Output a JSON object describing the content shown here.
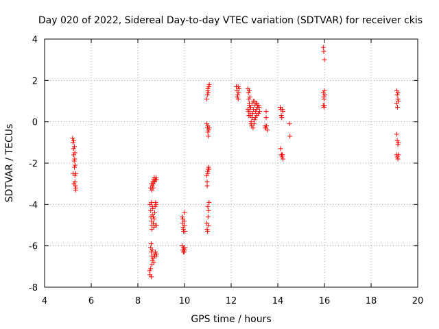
{
  "chart_data": {
    "type": "scatter",
    "title": "Day 020 of 2022, Sidereal Day-to-day VTEC variation (SDTVAR) for receiver ckis",
    "xlabel": "GPS time / hours",
    "ylabel": "SDTVAR / TECUs",
    "xlim": [
      4,
      20
    ],
    "ylim": [
      -8,
      4
    ],
    "xticks": [
      4,
      6,
      8,
      10,
      12,
      14,
      16,
      18,
      20
    ],
    "yticks": [
      -8,
      -6,
      -4,
      -2,
      0,
      2,
      4
    ],
    "xtick_labels": [
      "4",
      "6",
      "8",
      "10",
      "12",
      "14",
      "16",
      "18",
      "20"
    ],
    "ytick_labels": [
      "-8",
      "-6",
      "-4",
      "-2",
      "0",
      "2",
      "4"
    ],
    "grid": true,
    "marker": "+",
    "color": "#ff0000",
    "points": [
      [
        5.2,
        -0.8
      ],
      [
        5.22,
        -1.0
      ],
      [
        5.24,
        -1.3
      ],
      [
        5.25,
        -1.6
      ],
      [
        5.27,
        -1.9
      ],
      [
        5.28,
        -2.2
      ],
      [
        5.3,
        -2.6
      ],
      [
        5.3,
        -2.9
      ],
      [
        5.32,
        -3.1
      ],
      [
        5.33,
        -3.3
      ],
      [
        5.25,
        -0.9
      ],
      [
        5.28,
        -1.2
      ],
      [
        5.3,
        -1.5
      ],
      [
        5.29,
        -1.8
      ],
      [
        5.31,
        -2.1
      ],
      [
        5.34,
        -2.5
      ],
      [
        5.34,
        -3.2
      ],
      [
        5.22,
        -2.5
      ],
      [
        5.26,
        -3.0
      ],
      [
        8.5,
        -7.2
      ],
      [
        8.52,
        -7.4
      ],
      [
        8.55,
        -7.1
      ],
      [
        8.58,
        -7.5
      ],
      [
        8.6,
        -6.9
      ],
      [
        8.62,
        -6.7
      ],
      [
        8.6,
        -6.5
      ],
      [
        8.58,
        -6.3
      ],
      [
        8.55,
        -6.1
      ],
      [
        8.57,
        -5.9
      ],
      [
        8.62,
        -6.2
      ],
      [
        8.65,
        -6.6
      ],
      [
        8.68,
        -6.8
      ],
      [
        8.7,
        -6.4
      ],
      [
        8.72,
        -6.5
      ],
      [
        8.75,
        -6.3
      ],
      [
        8.78,
        -6.5
      ],
      [
        8.8,
        -6.4
      ],
      [
        8.52,
        -4.0
      ],
      [
        8.55,
        -4.3
      ],
      [
        8.56,
        -4.6
      ],
      [
        8.58,
        -4.8
      ],
      [
        8.6,
        -5.0
      ],
      [
        8.62,
        -4.5
      ],
      [
        8.64,
        -4.2
      ],
      [
        8.66,
        -4.9
      ],
      [
        8.68,
        -5.1
      ],
      [
        8.7,
        -4.7
      ],
      [
        8.72,
        -4.4
      ],
      [
        8.74,
        -4.1
      ],
      [
        8.76,
        -3.9
      ],
      [
        8.78,
        -4.0
      ],
      [
        8.8,
        -5.0
      ],
      [
        8.74,
        -5.0
      ],
      [
        8.62,
        -4.1
      ],
      [
        8.58,
        -3.9
      ],
      [
        8.6,
        -5.2
      ],
      [
        8.66,
        -4.6
      ],
      [
        8.55,
        -3.2
      ],
      [
        8.58,
        -3.0
      ],
      [
        8.6,
        -3.3
      ],
      [
        8.62,
        -3.1
      ],
      [
        8.64,
        -2.9
      ],
      [
        8.66,
        -3.0
      ],
      [
        8.68,
        -2.8
      ],
      [
        8.7,
        -2.7
      ],
      [
        8.72,
        -2.9
      ],
      [
        8.75,
        -2.8
      ],
      [
        8.8,
        -2.8
      ],
      [
        8.78,
        -2.7
      ],
      [
        8.65,
        -3.2
      ],
      [
        9.9,
        -4.6
      ],
      [
        9.92,
        -4.9
      ],
      [
        9.94,
        -5.1
      ],
      [
        9.96,
        -5.3
      ],
      [
        9.98,
        -4.8
      ],
      [
        10.0,
        -4.4
      ],
      [
        10.0,
        -5.0
      ],
      [
        9.95,
        -5.2
      ],
      [
        10.02,
        -5.3
      ],
      [
        9.93,
        -4.7
      ],
      [
        9.9,
        -6.0
      ],
      [
        9.93,
        -6.2
      ],
      [
        9.96,
        -6.1
      ],
      [
        9.98,
        -6.3
      ],
      [
        10.0,
        -6.2
      ],
      [
        10.02,
        -6.1
      ],
      [
        9.95,
        -6.3
      ],
      [
        10.95,
        1.1
      ],
      [
        10.98,
        1.3
      ],
      [
        11.0,
        1.5
      ],
      [
        11.02,
        1.4
      ],
      [
        11.04,
        1.7
      ],
      [
        11.06,
        1.8
      ],
      [
        11.0,
        1.6
      ],
      [
        10.96,
        -0.1
      ],
      [
        10.98,
        -0.3
      ],
      [
        11.0,
        -0.5
      ],
      [
        11.02,
        -0.7
      ],
      [
        11.04,
        -0.4
      ],
      [
        11.06,
        -0.3
      ],
      [
        11.0,
        -0.2
      ],
      [
        10.95,
        -2.6
      ],
      [
        10.97,
        -2.9
      ],
      [
        10.99,
        -2.4
      ],
      [
        11.01,
        -2.3
      ],
      [
        11.03,
        -2.2
      ],
      [
        11.05,
        -2.3
      ],
      [
        10.97,
        -3.1
      ],
      [
        11.0,
        -2.5
      ],
      [
        10.95,
        -4.9
      ],
      [
        10.97,
        -5.2
      ],
      [
        10.99,
        -5.3
      ],
      [
        11.01,
        -4.6
      ],
      [
        11.03,
        -4.3
      ],
      [
        11.05,
        -3.9
      ],
      [
        11.0,
        -4.1
      ],
      [
        11.02,
        -5.0
      ],
      [
        12.22,
        1.7
      ],
      [
        12.25,
        1.5
      ],
      [
        12.28,
        1.3
      ],
      [
        12.3,
        1.1
      ],
      [
        12.32,
        1.4
      ],
      [
        12.34,
        1.6
      ],
      [
        12.26,
        1.2
      ],
      [
        12.3,
        1.7
      ],
      [
        12.72,
        1.6
      ],
      [
        12.74,
        1.4
      ],
      [
        12.76,
        1.1
      ],
      [
        12.78,
        0.9
      ],
      [
        12.8,
        0.7
      ],
      [
        12.78,
        1.5
      ],
      [
        12.8,
        1.2
      ],
      [
        12.72,
        0.6
      ],
      [
        12.74,
        0.5
      ],
      [
        12.76,
        0.3
      ],
      [
        12.78,
        0.8
      ],
      [
        12.8,
        0.5
      ],
      [
        12.82,
        0.3
      ],
      [
        12.84,
        0.7
      ],
      [
        12.86,
        0.0
      ],
      [
        12.88,
        -0.2
      ],
      [
        12.9,
        0.9
      ],
      [
        12.92,
        0.4
      ],
      [
        12.94,
        -0.3
      ],
      [
        12.96,
        0.6
      ],
      [
        12.98,
        -0.1
      ],
      [
        13.0,
        1.0
      ],
      [
        13.02,
        0.8
      ],
      [
        13.04,
        0.2
      ],
      [
        13.06,
        0.9
      ],
      [
        13.08,
        0.6
      ],
      [
        13.1,
        0.3
      ],
      [
        13.12,
        0.8
      ],
      [
        13.14,
        0.7
      ],
      [
        13.16,
        0.4
      ],
      [
        13.18,
        0.8
      ],
      [
        13.2,
        0.7
      ],
      [
        13.22,
        0.5
      ],
      [
        12.9,
        0.2
      ],
      [
        13.0,
        0.1
      ],
      [
        13.05,
        0.5
      ],
      [
        12.95,
        1.0
      ],
      [
        13.1,
        0.9
      ],
      [
        12.85,
        -0.1
      ],
      [
        13.45,
        -0.2
      ],
      [
        13.47,
        -0.3
      ],
      [
        13.5,
        0.2
      ],
      [
        13.52,
        -0.2
      ],
      [
        13.55,
        -0.4
      ],
      [
        13.5,
        0.5
      ],
      [
        13.48,
        -0.3
      ],
      [
        14.1,
        0.7
      ],
      [
        14.13,
        0.6
      ],
      [
        14.15,
        0.3
      ],
      [
        14.17,
        0.2
      ],
      [
        14.2,
        0.6
      ],
      [
        14.22,
        0.5
      ],
      [
        14.12,
        -1.3
      ],
      [
        14.15,
        -1.6
      ],
      [
        14.18,
        -1.7
      ],
      [
        14.2,
        -1.6
      ],
      [
        14.22,
        -1.8
      ],
      [
        14.17,
        -1.6
      ],
      [
        14.5,
        -0.1
      ],
      [
        14.52,
        -0.7
      ],
      [
        15.95,
        3.6
      ],
      [
        15.97,
        3.4
      ],
      [
        16.0,
        3.0
      ],
      [
        15.95,
        1.4
      ],
      [
        15.97,
        1.2
      ],
      [
        16.0,
        1.5
      ],
      [
        16.02,
        1.3
      ],
      [
        15.98,
        1.1
      ],
      [
        15.95,
        0.8
      ],
      [
        15.98,
        0.7
      ],
      [
        16.0,
        0.8
      ],
      [
        19.1,
        1.5
      ],
      [
        19.12,
        1.3
      ],
      [
        19.15,
        1.4
      ],
      [
        19.17,
        1.0
      ],
      [
        19.1,
        0.9
      ],
      [
        19.13,
        0.7
      ],
      [
        19.15,
        1.1
      ],
      [
        19.1,
        -0.6
      ],
      [
        19.12,
        -0.9
      ],
      [
        19.15,
        -1.1
      ],
      [
        19.17,
        -1.0
      ],
      [
        19.1,
        -1.6
      ],
      [
        19.12,
        -1.7
      ],
      [
        19.15,
        -1.8
      ],
      [
        19.17,
        -1.6
      ]
    ]
  }
}
